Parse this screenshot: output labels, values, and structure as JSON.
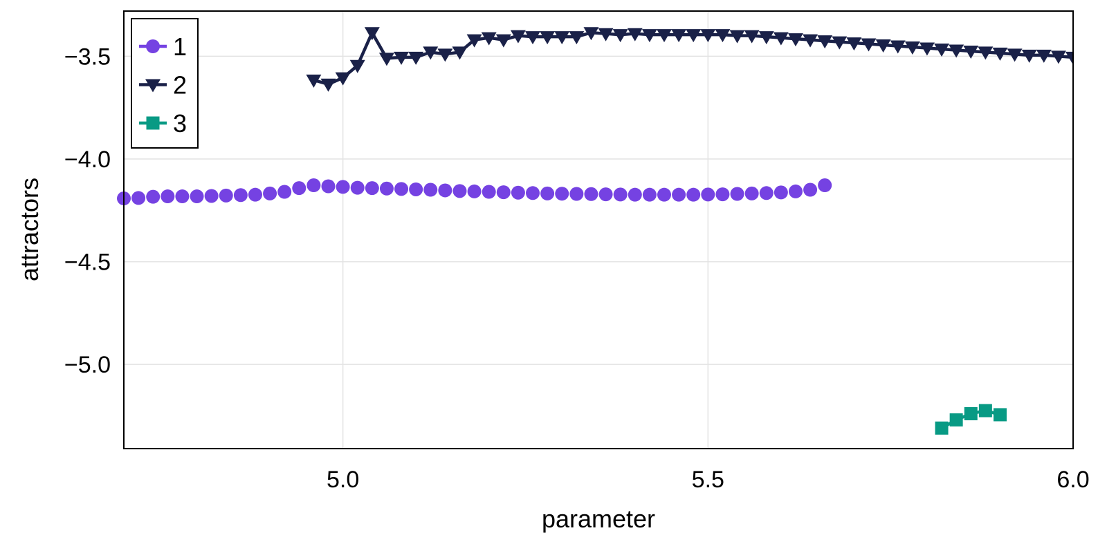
{
  "chart_data": {
    "type": "line",
    "xlabel": "parameter",
    "ylabel": "attractors",
    "xlim": [
      4.7,
      6.0
    ],
    "ylim": [
      -5.41,
      -3.28
    ],
    "xticks": [
      5.0,
      5.5,
      6.0
    ],
    "xtick_labels": [
      "5.0",
      "5.5",
      "6.0"
    ],
    "yticks": [
      -3.5,
      -4.0,
      -4.5,
      -5.0
    ],
    "ytick_labels": [
      "−3.5",
      "−4.0",
      "−4.5",
      "−5.0"
    ],
    "grid": true,
    "legend_position": "top-left",
    "series": [
      {
        "name": "1",
        "color": "#7542e2",
        "marker": "circle",
        "line": false,
        "x": [
          4.7,
          4.72,
          4.74,
          4.76,
          4.78,
          4.8,
          4.82,
          4.84,
          4.86,
          4.88,
          4.9,
          4.92,
          4.94,
          4.96,
          4.98,
          5.0,
          5.02,
          5.04,
          5.06,
          5.08,
          5.1,
          5.12,
          5.14,
          5.16,
          5.18,
          5.2,
          5.22,
          5.24,
          5.26,
          5.28,
          5.3,
          5.32,
          5.34,
          5.36,
          5.38,
          5.4,
          5.42,
          5.44,
          5.46,
          5.48,
          5.5,
          5.52,
          5.54,
          5.56,
          5.58,
          5.6,
          5.62,
          5.64,
          5.66
        ],
        "y": [
          -4.192,
          -4.19,
          -4.184,
          -4.182,
          -4.182,
          -4.182,
          -4.18,
          -4.178,
          -4.176,
          -4.174,
          -4.168,
          -4.16,
          -4.142,
          -4.128,
          -4.133,
          -4.136,
          -4.14,
          -4.142,
          -4.144,
          -4.146,
          -4.148,
          -4.15,
          -4.153,
          -4.156,
          -4.158,
          -4.16,
          -4.162,
          -4.164,
          -4.166,
          -4.168,
          -4.169,
          -4.17,
          -4.171,
          -4.172,
          -4.173,
          -4.174,
          -4.174,
          -4.174,
          -4.174,
          -4.174,
          -4.173,
          -4.172,
          -4.17,
          -4.168,
          -4.166,
          -4.163,
          -4.158,
          -4.15,
          -4.128
        ]
      },
      {
        "name": "2",
        "color": "#1a2148",
        "marker": "triangle-down",
        "line": true,
        "x": [
          4.96,
          4.98,
          5.0,
          5.02,
          5.04,
          5.06,
          5.08,
          5.1,
          5.12,
          5.14,
          5.16,
          5.18,
          5.2,
          5.22,
          5.24,
          5.26,
          5.28,
          5.3,
          5.32,
          5.34,
          5.36,
          5.38,
          5.4,
          5.42,
          5.44,
          5.46,
          5.48,
          5.5,
          5.52,
          5.54,
          5.56,
          5.58,
          5.6,
          5.62,
          5.64,
          5.66,
          5.68,
          5.7,
          5.72,
          5.74,
          5.76,
          5.78,
          5.8,
          5.82,
          5.84,
          5.86,
          5.88,
          5.9,
          5.92,
          5.94,
          5.96,
          5.98,
          6.0
        ],
        "y": [
          -3.616,
          -3.636,
          -3.605,
          -3.545,
          -3.385,
          -3.51,
          -3.505,
          -3.505,
          -3.48,
          -3.49,
          -3.48,
          -3.42,
          -3.41,
          -3.42,
          -3.4,
          -3.405,
          -3.405,
          -3.405,
          -3.405,
          -3.385,
          -3.39,
          -3.395,
          -3.39,
          -3.395,
          -3.395,
          -3.395,
          -3.395,
          -3.395,
          -3.395,
          -3.4,
          -3.4,
          -3.405,
          -3.41,
          -3.415,
          -3.42,
          -3.425,
          -3.43,
          -3.435,
          -3.44,
          -3.445,
          -3.45,
          -3.455,
          -3.46,
          -3.465,
          -3.47,
          -3.475,
          -3.48,
          -3.485,
          -3.49,
          -3.495,
          -3.495,
          -3.5,
          -3.505
        ]
      },
      {
        "name": "3",
        "color": "#089a84",
        "marker": "square",
        "line": true,
        "x": [
          5.82,
          5.84,
          5.86,
          5.88,
          5.9
        ],
        "y": [
          -5.31,
          -5.27,
          -5.24,
          -5.225,
          -5.245
        ]
      }
    ]
  }
}
